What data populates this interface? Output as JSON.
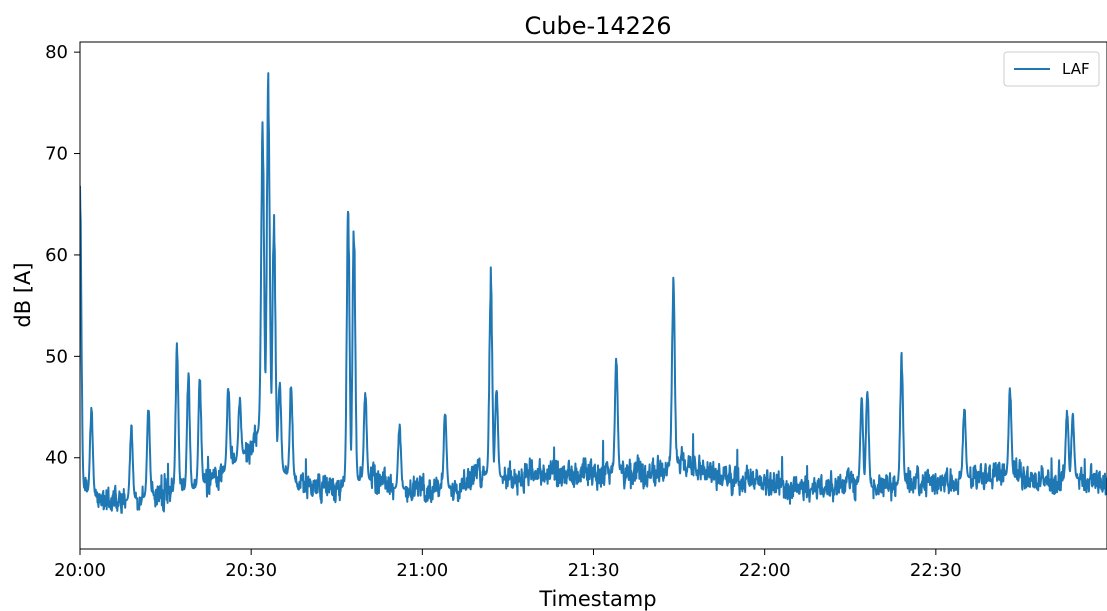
{
  "chart_data": {
    "type": "line",
    "title": "Cube-14226",
    "xlabel": "Timestamp",
    "ylabel": "dB [A]",
    "x_range": [
      "20:00",
      "22:59"
    ],
    "ylim": [
      31,
      81
    ],
    "x_ticks": [
      "20:00",
      "20:30",
      "21:00",
      "21:30",
      "22:00",
      "22:30"
    ],
    "y_ticks": [
      40,
      50,
      60,
      70,
      80
    ],
    "grid": false,
    "legend_position": "top-right",
    "series": [
      {
        "name": "LAF",
        "color": "#1f77b4",
        "baseline": [
          [
            "20:00",
            37.0
          ],
          [
            "20:05",
            35.5
          ],
          [
            "20:10",
            36.0
          ],
          [
            "20:15",
            36.5
          ],
          [
            "20:20",
            37.0
          ],
          [
            "20:25",
            38.5
          ],
          [
            "20:30",
            41.0
          ],
          [
            "20:33",
            45.0
          ],
          [
            "20:35",
            39.0
          ],
          [
            "20:38",
            37.5
          ],
          [
            "20:45",
            37.0
          ],
          [
            "20:50",
            38.0
          ],
          [
            "20:55",
            37.0
          ],
          [
            "21:00",
            36.8
          ],
          [
            "21:05",
            37.0
          ],
          [
            "21:10",
            38.5
          ],
          [
            "21:15",
            38.0
          ],
          [
            "21:20",
            38.5
          ],
          [
            "21:25",
            38.0
          ],
          [
            "21:30",
            38.5
          ],
          [
            "21:35",
            38.5
          ],
          [
            "21:40",
            38.5
          ],
          [
            "21:45",
            39.5
          ],
          [
            "21:50",
            38.5
          ],
          [
            "21:55",
            38.0
          ],
          [
            "22:00",
            37.5
          ],
          [
            "22:05",
            37.0
          ],
          [
            "22:10",
            37.0
          ],
          [
            "22:15",
            37.5
          ],
          [
            "22:20",
            37.0
          ],
          [
            "22:25",
            37.5
          ],
          [
            "22:30",
            37.5
          ],
          [
            "22:35",
            38.0
          ],
          [
            "22:40",
            38.5
          ],
          [
            "22:45",
            38.0
          ],
          [
            "22:50",
            37.5
          ],
          [
            "22:55",
            38.0
          ],
          [
            "22:59",
            37.5
          ]
        ],
        "peaks": [
          [
            "20:00",
            67.2
          ],
          [
            "20:02",
            45.2
          ],
          [
            "20:09",
            43.5
          ],
          [
            "20:12",
            45.4
          ],
          [
            "20:17",
            51.8
          ],
          [
            "20:19",
            48.9
          ],
          [
            "20:21",
            48.2
          ],
          [
            "20:26",
            47.3
          ],
          [
            "20:28",
            46.0
          ],
          [
            "20:32",
            74.6
          ],
          [
            "20:33",
            78.5
          ],
          [
            "20:34",
            64.6
          ],
          [
            "20:35",
            48.0
          ],
          [
            "20:37",
            47.7
          ],
          [
            "20:47",
            66.0
          ],
          [
            "20:48",
            63.8
          ],
          [
            "20:50",
            47.0
          ],
          [
            "20:56",
            43.5
          ],
          [
            "21:04",
            44.9
          ],
          [
            "21:12",
            58.8
          ],
          [
            "21:13",
            47.5
          ],
          [
            "21:34",
            50.2
          ],
          [
            "21:44",
            58.3
          ],
          [
            "22:17",
            46.3
          ],
          [
            "22:18",
            47.3
          ],
          [
            "22:24",
            50.5
          ],
          [
            "22:35",
            45.3
          ],
          [
            "22:43",
            47.2
          ],
          [
            "22:53",
            45.0
          ],
          [
            "22:54",
            44.5
          ]
        ],
        "min_approx": 33.2,
        "max_approx": 78.5
      }
    ]
  }
}
